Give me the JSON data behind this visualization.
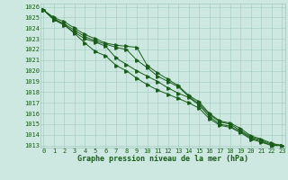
{
  "x": [
    0,
    1,
    2,
    3,
    4,
    5,
    6,
    7,
    8,
    9,
    10,
    11,
    12,
    13,
    14,
    15,
    16,
    17,
    18,
    19,
    20,
    21,
    22,
    23
  ],
  "line1": [
    1025.7,
    1025.0,
    1024.6,
    1024.0,
    1023.4,
    1023.0,
    1022.6,
    1022.4,
    1022.3,
    1022.2,
    1020.5,
    1019.8,
    1019.2,
    1018.6,
    1017.7,
    1017.1,
    1016.0,
    1015.3,
    1015.1,
    1014.6,
    1013.9,
    1013.6,
    1013.2,
    1013.0
  ],
  "line2": [
    1025.7,
    1024.9,
    1024.4,
    1023.8,
    1023.2,
    1022.8,
    1022.5,
    1022.2,
    1022.0,
    1021.0,
    1020.3,
    1019.5,
    1019.0,
    1018.5,
    1017.6,
    1016.9,
    1015.9,
    1015.2,
    1015.0,
    1014.4,
    1013.8,
    1013.5,
    1013.1,
    1013.0
  ],
  "line3": [
    1025.7,
    1024.8,
    1024.3,
    1023.6,
    1023.0,
    1022.7,
    1022.3,
    1021.2,
    1020.6,
    1020.0,
    1019.5,
    1019.0,
    1018.4,
    1017.9,
    1017.5,
    1016.8,
    1015.7,
    1015.0,
    1014.8,
    1014.3,
    1013.7,
    1013.4,
    1013.0,
    1013.0
  ],
  "line4": [
    1025.7,
    1024.8,
    1024.3,
    1023.5,
    1022.6,
    1021.8,
    1021.4,
    1020.5,
    1020.0,
    1019.3,
    1018.7,
    1018.2,
    1017.8,
    1017.4,
    1017.0,
    1016.5,
    1015.5,
    1014.9,
    1014.7,
    1014.2,
    1013.6,
    1013.3,
    1013.0,
    1013.0
  ],
  "line_color": "#1a5c1a",
  "bg_color": "#cce8e0",
  "grid_color": "#a0c8be",
  "label_color": "#1a5c1a",
  "xlabel": "Graphe pression niveau de la mer (hPa)",
  "ylim": [
    1013,
    1026
  ],
  "xlim": [
    0,
    23
  ],
  "yticks": [
    1013,
    1014,
    1015,
    1016,
    1017,
    1018,
    1019,
    1020,
    1021,
    1022,
    1023,
    1024,
    1025,
    1026
  ],
  "xticks": [
    0,
    1,
    2,
    3,
    4,
    5,
    6,
    7,
    8,
    9,
    10,
    11,
    12,
    13,
    14,
    15,
    16,
    17,
    18,
    19,
    20,
    21,
    22,
    23
  ],
  "tick_fontsize": 5,
  "xlabel_fontsize": 6,
  "marker_size": 2.5,
  "linewidth": 0.7
}
